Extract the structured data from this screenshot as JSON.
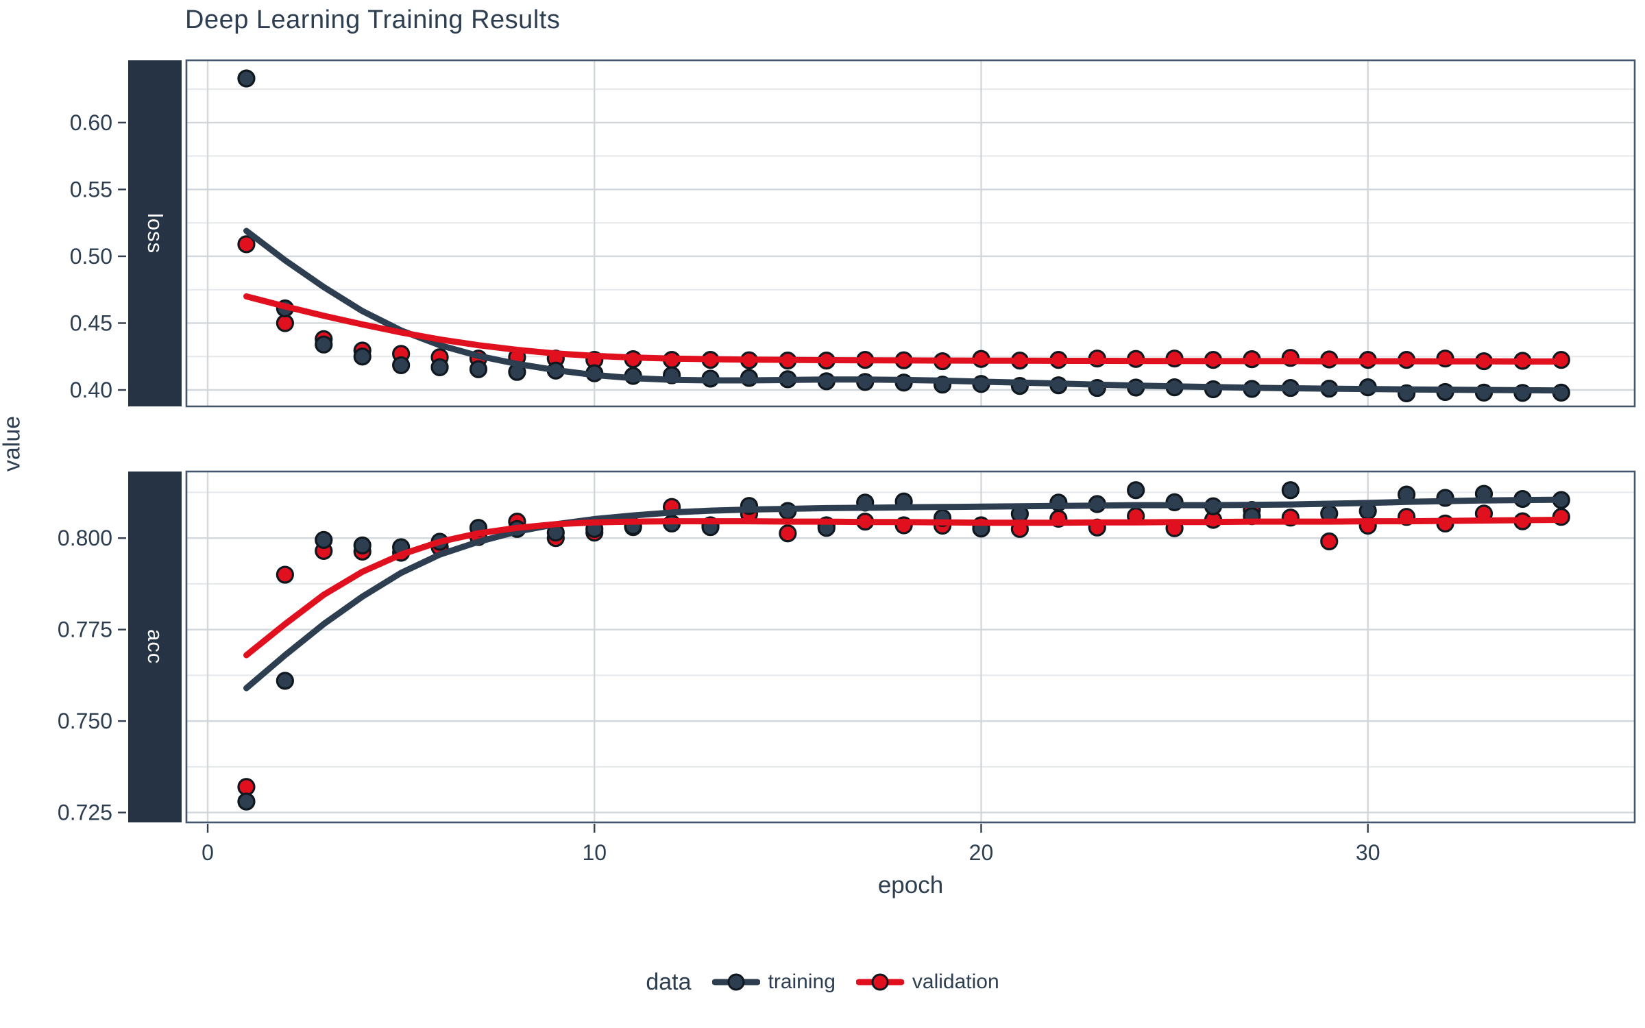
{
  "title": "Deep Learning Training Results",
  "axes": {
    "x_title": "epoch",
    "y_title": "value"
  },
  "facets": [
    {
      "label": "loss"
    },
    {
      "label": "acc"
    }
  ],
  "legend": {
    "title": "data",
    "items": [
      {
        "label": "training",
        "color": "#2C3E50"
      },
      {
        "label": "validation",
        "color": "#E0101E"
      }
    ]
  },
  "colors": {
    "navy": "#2C3E50",
    "red": "#E0101E",
    "point_outline": "#10181f",
    "grid_major": "#D2D7DB",
    "grid_minor": "#E5E8EA",
    "panel_border": "#44576B",
    "tick_mark": "#333f4a",
    "strip_bg": "#253344",
    "text": "#2C3E50"
  },
  "chart_data": [
    {
      "type": "scatter",
      "facet": "loss",
      "x_title": "epoch",
      "xlim": [
        -0.55,
        36.9
      ],
      "ylim": [
        0.3877,
        0.6466
      ],
      "xticks": [
        {
          "v": 0,
          "label": "0"
        },
        {
          "v": 10,
          "label": "10"
        },
        {
          "v": 20,
          "label": "20"
        },
        {
          "v": 30,
          "label": "30"
        }
      ],
      "yticks": [
        {
          "v": 0.4,
          "label": "0.40"
        },
        {
          "v": 0.45,
          "label": "0.45"
        },
        {
          "v": 0.5,
          "label": "0.50"
        },
        {
          "v": 0.55,
          "label": "0.55"
        },
        {
          "v": 0.6,
          "label": "0.60"
        }
      ],
      "yminor": [
        0.425,
        0.475,
        0.525,
        0.575,
        0.625
      ],
      "x": [
        1,
        2,
        3,
        4,
        5,
        6,
        7,
        8,
        9,
        10,
        11,
        12,
        13,
        14,
        15,
        16,
        17,
        18,
        19,
        20,
        21,
        22,
        23,
        24,
        25,
        26,
        27,
        28,
        29,
        30,
        31,
        32,
        33,
        34,
        35
      ],
      "series": [
        {
          "name": "training",
          "color": "#2C3E50",
          "points": [
            0.633,
            0.461,
            0.434,
            0.425,
            0.4185,
            0.417,
            0.4155,
            0.4135,
            0.4145,
            0.4125,
            0.4105,
            0.411,
            0.4085,
            0.409,
            0.408,
            0.4065,
            0.406,
            0.4055,
            0.404,
            0.4045,
            0.403,
            0.4035,
            0.4015,
            0.4018,
            0.402,
            0.4005,
            0.4008,
            0.4015,
            0.401,
            0.402,
            0.3975,
            0.3985,
            0.398,
            0.3978,
            0.398
          ],
          "smooth": [
            0.519,
            0.497,
            0.477,
            0.459,
            0.4445,
            0.4335,
            0.4255,
            0.4195,
            0.4148,
            0.4112,
            0.4088,
            0.4076,
            0.4072,
            0.4072,
            0.4075,
            0.4078,
            0.4078,
            0.4075,
            0.407,
            0.4062,
            0.4055,
            0.4048,
            0.404,
            0.4033,
            0.4027,
            0.4022,
            0.4017,
            0.4013,
            0.401,
            0.4007,
            0.4004,
            0.4002,
            0.4,
            0.3998,
            0.3996
          ]
        },
        {
          "name": "validation",
          "color": "#E0101E",
          "points": [
            0.509,
            0.45,
            0.438,
            0.4295,
            0.427,
            0.4245,
            0.4235,
            0.4245,
            0.4235,
            0.4225,
            0.423,
            0.4225,
            0.4225,
            0.4222,
            0.422,
            0.422,
            0.4225,
            0.4222,
            0.4215,
            0.4232,
            0.422,
            0.4225,
            0.4235,
            0.4232,
            0.4235,
            0.4225,
            0.423,
            0.424,
            0.4228,
            0.4225,
            0.4225,
            0.4235,
            0.4215,
            0.4218,
            0.4225
          ],
          "smooth": [
            0.47,
            0.4625,
            0.4555,
            0.449,
            0.443,
            0.4378,
            0.4335,
            0.43,
            0.4273,
            0.4255,
            0.4243,
            0.4235,
            0.423,
            0.4227,
            0.4225,
            0.4223,
            0.4222,
            0.4221,
            0.422,
            0.4219,
            0.4219,
            0.4218,
            0.4218,
            0.4217,
            0.4217,
            0.4216,
            0.4216,
            0.4216,
            0.4215,
            0.4215,
            0.4215,
            0.4214,
            0.4214,
            0.4213,
            0.4213
          ]
        }
      ]
    },
    {
      "type": "scatter",
      "facet": "acc",
      "x_title": "epoch",
      "xlim": [
        -0.55,
        36.9
      ],
      "ylim": [
        0.7223,
        0.8182
      ],
      "xticks": [
        {
          "v": 0,
          "label": "0"
        },
        {
          "v": 10,
          "label": "10"
        },
        {
          "v": 20,
          "label": "20"
        },
        {
          "v": 30,
          "label": "30"
        }
      ],
      "yticks": [
        {
          "v": 0.725,
          "label": "0.725"
        },
        {
          "v": 0.75,
          "label": "0.750"
        },
        {
          "v": 0.775,
          "label": "0.775"
        },
        {
          "v": 0.8,
          "label": "0.800"
        }
      ],
      "yminor": [
        0.7375,
        0.7625,
        0.7875,
        0.8125
      ],
      "x": [
        1,
        2,
        3,
        4,
        5,
        6,
        7,
        8,
        9,
        10,
        11,
        12,
        13,
        14,
        15,
        16,
        17,
        18,
        19,
        20,
        21,
        22,
        23,
        24,
        25,
        26,
        27,
        28,
        29,
        30,
        31,
        32,
        33,
        34,
        35
      ],
      "series": [
        {
          "name": "training",
          "color": "#2C3E50",
          "points": [
            0.728,
            0.761,
            0.7995,
            0.798,
            0.7975,
            0.799,
            0.8028,
            0.8025,
            0.8015,
            0.8025,
            0.8033,
            0.804,
            0.803,
            0.8088,
            0.8074,
            0.8028,
            0.8097,
            0.81,
            0.8055,
            0.8026,
            0.8066,
            0.8097,
            0.8093,
            0.8131,
            0.8098,
            0.8087,
            0.806,
            0.8131,
            0.8067,
            0.8074,
            0.8119,
            0.811,
            0.8121,
            0.8107,
            0.8104
          ],
          "smooth": [
            0.759,
            0.768,
            0.7765,
            0.784,
            0.7905,
            0.7955,
            0.799,
            0.8018,
            0.8038,
            0.8052,
            0.8062,
            0.807,
            0.8075,
            0.8078,
            0.808,
            0.8082,
            0.8083,
            0.8084,
            0.8085,
            0.8086,
            0.8087,
            0.8088,
            0.8089,
            0.809,
            0.809,
            0.809,
            0.8091,
            0.8092,
            0.8094,
            0.8096,
            0.8099,
            0.8101,
            0.8103,
            0.8104,
            0.8105
          ]
        },
        {
          "name": "validation",
          "color": "#E0101E",
          "points": [
            0.732,
            0.79,
            0.7965,
            0.7963,
            0.796,
            0.7975,
            0.8003,
            0.8045,
            0.8,
            0.8015,
            0.803,
            0.8085,
            0.8035,
            0.8066,
            0.8013,
            0.8035,
            0.8045,
            0.8035,
            0.8034,
            0.8035,
            0.8025,
            0.8053,
            0.8029,
            0.806,
            0.8027,
            0.805,
            0.8077,
            0.8056,
            0.7991,
            0.8034,
            0.8058,
            0.804,
            0.8067,
            0.8046,
            0.8058
          ],
          "smooth": [
            0.768,
            0.7765,
            0.7845,
            0.7908,
            0.7955,
            0.799,
            0.8013,
            0.8028,
            0.8038,
            0.8043,
            0.8045,
            0.8046,
            0.8046,
            0.8046,
            0.8045,
            0.8045,
            0.8044,
            0.8044,
            0.8043,
            0.8042,
            0.8042,
            0.8042,
            0.8043,
            0.8043,
            0.8044,
            0.8044,
            0.8045,
            0.8045,
            0.8045,
            0.8046,
            0.8046,
            0.8047,
            0.8048,
            0.8049,
            0.805
          ]
        }
      ]
    }
  ]
}
